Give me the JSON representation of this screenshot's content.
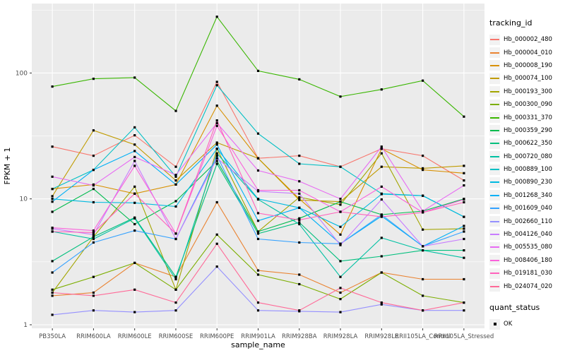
{
  "figure": {
    "y_axis_title": "FPKM + 1",
    "x_axis_title": "sample_name",
    "y_tick_labels": [
      "1",
      "10",
      "100"
    ],
    "panel_bg": "#EBEBEB",
    "grid_color": "#FFFFFF",
    "tick_text_color": "#4D4D4D",
    "legend_key_bg": "#F2F2F2",
    "point_color": "#000000"
  },
  "legend": {
    "title": "tracking_id",
    "position": "right"
  },
  "quant_legend": {
    "title": "quant_status",
    "items": [
      {
        "label": "OK",
        "marker": "black-square"
      }
    ]
  },
  "chart_data": {
    "type": "line",
    "title": "",
    "xlabel": "sample_name",
    "ylabel": "FPKM + 1",
    "y_scale": "log10",
    "ylim": [
      1,
      320
    ],
    "y_major_ticks": [
      1,
      10,
      100
    ],
    "y_minor_ticks": [
      3.162,
      31.62,
      316.2
    ],
    "grid": true,
    "legend_position": "right",
    "point_marker": "filled-black-square",
    "categories": [
      "PB350LA",
      "RRIM600LA",
      "RRIM600LE",
      "RRIM600SE",
      "RRIM600PE",
      "RRIM901LA",
      "RRIM928BA",
      "RRIM928LA",
      "RRIM928LE",
      "RRII105LA_Control",
      "RRII105LA_Stressed"
    ],
    "series": [
      {
        "name": "Hb_000002_480",
        "color": "#F8766D",
        "values": [
          26,
          22,
          32,
          18,
          85,
          21,
          22,
          18,
          25,
          22,
          14
        ]
      },
      {
        "name": "Hb_000004_010",
        "color": "#EA8331",
        "values": [
          1.7,
          1.8,
          3.1,
          2.4,
          9.4,
          2.7,
          2.5,
          1.8,
          2.6,
          2.3,
          2.3
        ]
      },
      {
        "name": "Hb_000008_190",
        "color": "#D89000",
        "values": [
          12,
          13,
          11,
          13,
          55,
          21,
          10,
          5.2,
          25,
          17,
          16
        ]
      },
      {
        "name": "Hb_000074_100",
        "color": "#C09B00",
        "values": [
          10.5,
          35,
          27,
          14,
          28,
          21,
          9.8,
          9.5,
          18,
          17.5,
          18.3
        ]
      },
      {
        "name": "Hb_000193_300",
        "color": "#A3A500",
        "values": [
          1.8,
          5,
          12.5,
          1.9,
          25,
          5.5,
          10.3,
          9,
          23,
          5.7,
          5.8
        ]
      },
      {
        "name": "Hb_000300_090",
        "color": "#7CAE00",
        "values": [
          1.9,
          2.4,
          3.1,
          1.9,
          5.2,
          2.5,
          2.1,
          1.6,
          2.6,
          1.7,
          1.5
        ]
      },
      {
        "name": "Hb_000331_370",
        "color": "#39B600",
        "values": [
          78,
          90,
          92,
          50,
          280,
          104,
          89,
          65,
          74,
          87,
          45
        ]
      },
      {
        "name": "Hb_000359_290",
        "color": "#00BB4E",
        "values": [
          7.9,
          12,
          6.3,
          9.6,
          20,
          5.5,
          7,
          9.5,
          7.5,
          8,
          10
        ]
      },
      {
        "name": "Hb_000622_350",
        "color": "#00BF7D",
        "values": [
          3.2,
          5,
          7.1,
          2.4,
          19,
          5.3,
          6.5,
          3.2,
          3.5,
          3.9,
          3.9
        ]
      },
      {
        "name": "Hb_000720_080",
        "color": "#00C1A3",
        "values": [
          5.5,
          4.8,
          7,
          2.3,
          23,
          9.9,
          6.3,
          2.4,
          4.9,
          3.9,
          3.4
        ]
      },
      {
        "name": "Hb_000889_100",
        "color": "#00BFC4",
        "values": [
          12,
          17,
          37,
          15,
          80,
          33,
          19,
          18,
          11,
          10.6,
          7.2
        ]
      },
      {
        "name": "Hb_000890_230",
        "color": "#00BAE0",
        "values": [
          10,
          9.4,
          9.3,
          8.7,
          25,
          10,
          8.5,
          6,
          10.9,
          10.6,
          7.2
        ]
      },
      {
        "name": "Hb_001268_340",
        "color": "#00B0F6",
        "values": [
          9.5,
          17,
          24,
          13,
          27,
          6.7,
          8.5,
          4.4,
          7.3,
          4.2,
          6.1
        ]
      },
      {
        "name": "Hb_001609_040",
        "color": "#35A2FF",
        "values": [
          2.6,
          4.5,
          5.6,
          4.8,
          22,
          4.8,
          4.5,
          4.4,
          7.5,
          4.2,
          5.5
        ]
      },
      {
        "name": "Hb_002660_110",
        "color": "#9590FF",
        "values": [
          1.2,
          1.3,
          1.26,
          1.3,
          2.9,
          1.3,
          1.28,
          1.26,
          1.45,
          1.3,
          1.3
        ]
      },
      {
        "name": "Hb_004126_040",
        "color": "#C77CFF",
        "values": [
          5.8,
          5.2,
          20,
          4.8,
          21,
          11.5,
          11,
          4.3,
          9.9,
          4.2,
          4.8
        ]
      },
      {
        "name": "Hb_005535_080",
        "color": "#E76BF3",
        "values": [
          15,
          12.8,
          21.5,
          15.5,
          40,
          16.8,
          13.8,
          10,
          26,
          8,
          12.8
        ]
      },
      {
        "name": "Hb_008406_180",
        "color": "#FA62DB",
        "values": [
          5.9,
          5.6,
          18.3,
          5.3,
          38,
          11.7,
          11.7,
          7.9,
          12.5,
          7.8,
          9.9
        ]
      },
      {
        "name": "Hb_019181_030",
        "color": "#FF62BC",
        "values": [
          5.5,
          5.4,
          11,
          5.3,
          42,
          7.7,
          6.8,
          7.9,
          7.2,
          7.8,
          9.4
        ]
      },
      {
        "name": "Hb_024074_020",
        "color": "#FF6A98",
        "values": [
          1.8,
          1.7,
          1.9,
          1.5,
          4.4,
          1.5,
          1.3,
          1.96,
          1.5,
          1.3,
          1.5
        ]
      }
    ]
  }
}
